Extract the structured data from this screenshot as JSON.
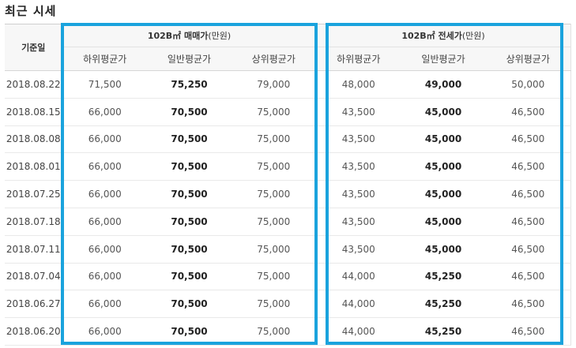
{
  "section_title": "최근 시세",
  "table": {
    "date_header": "기준일",
    "sale_group": {
      "label": "102B㎡ 매매가",
      "unit": "(만원)"
    },
    "lease_group": {
      "label": "102B㎡ 전세가",
      "unit": "(만원)"
    },
    "sub_headers": {
      "low": "하위평균가",
      "mid": "일반평균가",
      "high": "상위평균가"
    },
    "rows": [
      {
        "date": "2018.08.22",
        "sale_low": "71,500",
        "sale_mid": "75,250",
        "sale_high": "79,000",
        "lease_low": "48,000",
        "lease_mid": "49,000",
        "lease_high": "50,000"
      },
      {
        "date": "2018.08.15",
        "sale_low": "66,000",
        "sale_mid": "70,500",
        "sale_high": "75,000",
        "lease_low": "43,500",
        "lease_mid": "45,000",
        "lease_high": "46,500"
      },
      {
        "date": "2018.08.08",
        "sale_low": "66,000",
        "sale_mid": "70,500",
        "sale_high": "75,000",
        "lease_low": "43,500",
        "lease_mid": "45,000",
        "lease_high": "46,500"
      },
      {
        "date": "2018.08.01",
        "sale_low": "66,000",
        "sale_mid": "70,500",
        "sale_high": "75,000",
        "lease_low": "43,500",
        "lease_mid": "45,000",
        "lease_high": "46,500"
      },
      {
        "date": "2018.07.25",
        "sale_low": "66,000",
        "sale_mid": "70,500",
        "sale_high": "75,000",
        "lease_low": "43,500",
        "lease_mid": "45,000",
        "lease_high": "46,500"
      },
      {
        "date": "2018.07.18",
        "sale_low": "66,000",
        "sale_mid": "70,500",
        "sale_high": "75,000",
        "lease_low": "43,500",
        "lease_mid": "45,000",
        "lease_high": "46,500"
      },
      {
        "date": "2018.07.11",
        "sale_low": "66,000",
        "sale_mid": "70,500",
        "sale_high": "75,000",
        "lease_low": "43,500",
        "lease_mid": "45,000",
        "lease_high": "46,500"
      },
      {
        "date": "2018.07.04",
        "sale_low": "66,000",
        "sale_mid": "70,500",
        "sale_high": "75,000",
        "lease_low": "44,000",
        "lease_mid": "45,250",
        "lease_high": "46,500"
      },
      {
        "date": "2018.06.27",
        "sale_low": "66,000",
        "sale_mid": "70,500",
        "sale_high": "75,000",
        "lease_low": "44,000",
        "lease_mid": "45,250",
        "lease_high": "46,500"
      },
      {
        "date": "2018.06.20",
        "sale_low": "66,000",
        "sale_mid": "70,500",
        "sale_high": "75,000",
        "lease_low": "44,000",
        "lease_mid": "45,250",
        "lease_high": "46,500"
      }
    ]
  },
  "colors": {
    "highlight_border": "#1aa3dd",
    "header_background": "#f7f7f7"
  }
}
